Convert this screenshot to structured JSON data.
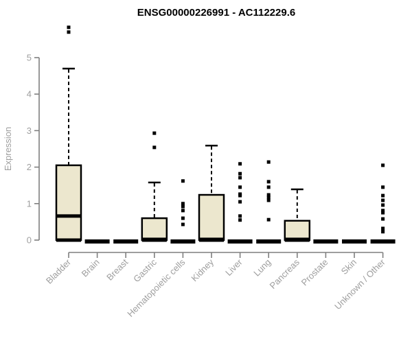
{
  "chart_data": {
    "type": "boxplot",
    "title": "ENSG00000226991 - AC112229.6",
    "ylabel": "Expression",
    "ylim": [
      0,
      5
    ],
    "yticks": [
      0,
      1,
      2,
      3,
      4,
      5
    ],
    "grid": false,
    "legend": "none",
    "categories": [
      "Bladder",
      "Brain",
      "Breast",
      "Gastric",
      "Hematopoietic cells",
      "Kidney",
      "Liver",
      "Lung",
      "Pancreas",
      "Prostate",
      "Skin",
      "Unknown / Other"
    ],
    "series": [
      {
        "label": "Bladder",
        "q1": 0.02,
        "median": 0.66,
        "q3": 2.05,
        "whisker_low": 0,
        "whisker_high": 4.7,
        "outliers": [
          5.83,
          5.7
        ]
      },
      {
        "label": "Brain",
        "q1": 0,
        "median": 0,
        "q3": 0.02,
        "whisker_low": 0,
        "whisker_high": 0.02,
        "outliers": []
      },
      {
        "label": "Breast",
        "q1": 0,
        "median": 0,
        "q3": 0.02,
        "whisker_low": 0,
        "whisker_high": 0.02,
        "outliers": []
      },
      {
        "label": "Gastric",
        "q1": 0,
        "median": 0.02,
        "q3": 0.6,
        "whisker_low": 0,
        "whisker_high": 1.58,
        "outliers": [
          2.93,
          2.54
        ]
      },
      {
        "label": "Hematopoietic cells",
        "q1": 0,
        "median": 0,
        "q3": 0.02,
        "whisker_low": 0,
        "whisker_high": 0.02,
        "outliers": [
          1.62,
          1.0,
          0.92,
          0.81,
          0.6,
          0.43
        ]
      },
      {
        "label": "Kidney",
        "q1": 0,
        "median": 0.02,
        "q3": 1.24,
        "whisker_low": 0,
        "whisker_high": 2.59,
        "outliers": []
      },
      {
        "label": "Liver",
        "q1": 0,
        "median": 0,
        "q3": 0.02,
        "whisker_low": 0,
        "whisker_high": 0.02,
        "outliers": [
          2.09,
          1.82,
          1.71,
          1.45,
          1.26,
          1.22,
          1.05,
          0.66,
          0.55
        ]
      },
      {
        "label": "Lung",
        "q1": 0,
        "median": 0,
        "q3": 0.02,
        "whisker_low": 0,
        "whisker_high": 0.02,
        "outliers": [
          2.14,
          1.6,
          1.45,
          1.24,
          1.17,
          1.09,
          0.56
        ]
      },
      {
        "label": "Pancreas",
        "q1": 0,
        "median": 0.02,
        "q3": 0.53,
        "whisker_low": 0,
        "whisker_high": 1.39,
        "outliers": []
      },
      {
        "label": "Prostate",
        "q1": 0,
        "median": 0,
        "q3": 0.02,
        "whisker_low": 0,
        "whisker_high": 0.02,
        "outliers": []
      },
      {
        "label": "Skin",
        "q1": 0,
        "median": 0,
        "q3": 0.02,
        "whisker_low": 0,
        "whisker_high": 0.02,
        "outliers": []
      },
      {
        "label": "Unknown / Other",
        "q1": 0,
        "median": 0,
        "q3": 0.02,
        "whisker_low": 0,
        "whisker_high": 0.02,
        "outliers": [
          2.05,
          1.45,
          1.22,
          1.09,
          0.96,
          0.81,
          0.75,
          0.58,
          0.32,
          0.23
        ]
      }
    ],
    "colors": {
      "box_fill": "#ECE7CE",
      "box_border": "#000000",
      "median": "#000000",
      "outlier": "#000000",
      "axis_line": "#7f7f7f",
      "axis_text": "#9e9e9e",
      "title_text": "#000000"
    }
  }
}
